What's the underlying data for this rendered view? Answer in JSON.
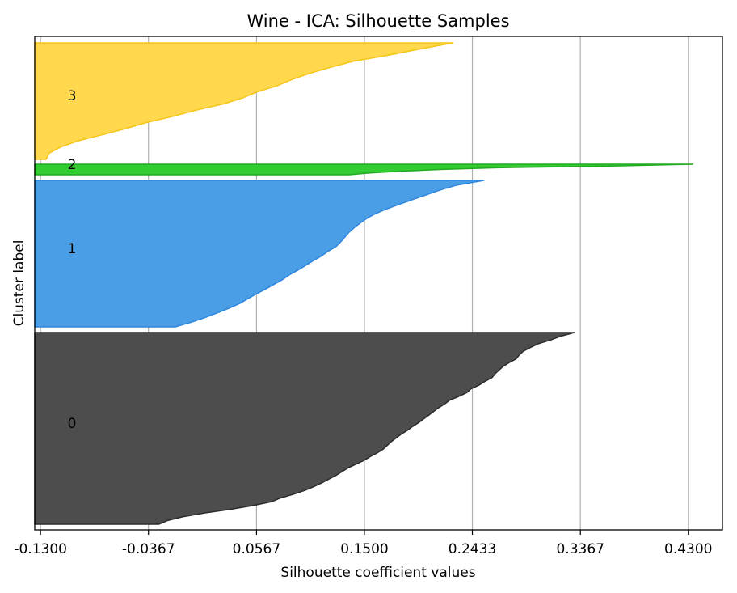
{
  "chart_data": {
    "type": "area",
    "title": "Wine - ICA: Silhouette Samples",
    "xlabel": "Silhouette coefficient values",
    "ylabel": "Cluster label",
    "xlim": [
      -0.135,
      0.4595
    ],
    "x_ticks": [
      "-0.1300",
      "-0.0367",
      "0.0567",
      "0.1500",
      "0.2433",
      "0.3367",
      "0.4300"
    ],
    "x_tick_values": [
      -0.13,
      -0.0367,
      0.0567,
      0.15,
      0.2433,
      0.3367,
      0.43
    ],
    "grid": "x-major",
    "clusters": [
      {
        "label": "0",
        "color": "#4d4d4d",
        "edge_color": "#2b2b2b",
        "values": [
          0.3317,
          0.3195,
          0.3108,
          0.3003,
          0.2934,
          0.2873,
          0.2838,
          0.2812,
          0.2751,
          0.2699,
          0.2664,
          0.2629,
          0.2603,
          0.2542,
          0.249,
          0.242,
          0.2385,
          0.2316,
          0.2237,
          0.2194,
          0.2142,
          0.2098,
          0.2055,
          0.2011,
          0.1968,
          0.1916,
          0.1872,
          0.182,
          0.1776,
          0.1733,
          0.1698,
          0.1663,
          0.1611,
          0.155,
          0.1498,
          0.1428,
          0.1359,
          0.1306,
          0.1254,
          0.1193,
          0.1132,
          0.1062,
          0.0984,
          0.0889,
          0.0776,
          0.0697,
          0.0541,
          0.0349,
          0.0122,
          -0.007,
          -0.02,
          -0.0278
        ]
      },
      {
        "label": "1",
        "color": "#4a9ee6",
        "edge_color": "#2e86de",
        "values": [
          0.2533,
          0.2298,
          0.2158,
          0.2041,
          0.1924,
          0.1808,
          0.1697,
          0.1598,
          0.1523,
          0.1465,
          0.1412,
          0.1366,
          0.1331,
          0.1296,
          0.1255,
          0.1186,
          0.1128,
          0.1058,
          0.0992,
          0.0923,
          0.0851,
          0.0792,
          0.0719,
          0.0645,
          0.0568,
          0.0495,
          0.0426,
          0.0334,
          0.0234,
          0.0126,
          0.0006,
          -0.0135
        ]
      },
      {
        "label": "2",
        "color": "#33cc33",
        "edge_color": "#22aa22",
        "values": [
          0.4338,
          0.3667,
          0.2641,
          0.2148,
          0.181,
          0.1534,
          0.1369
        ]
      },
      {
        "label": "3",
        "color": "#ffd84d",
        "edge_color": "#f5c518",
        "values": [
          0.2264,
          0.1979,
          0.1713,
          0.1404,
          0.1205,
          0.1021,
          0.087,
          0.0744,
          0.057,
          0.0445,
          0.0275,
          0.0039,
          -0.0157,
          -0.0385,
          -0.0567,
          -0.0769,
          -0.0978,
          -0.1128,
          -0.1227,
          -0.1251
        ]
      }
    ]
  }
}
